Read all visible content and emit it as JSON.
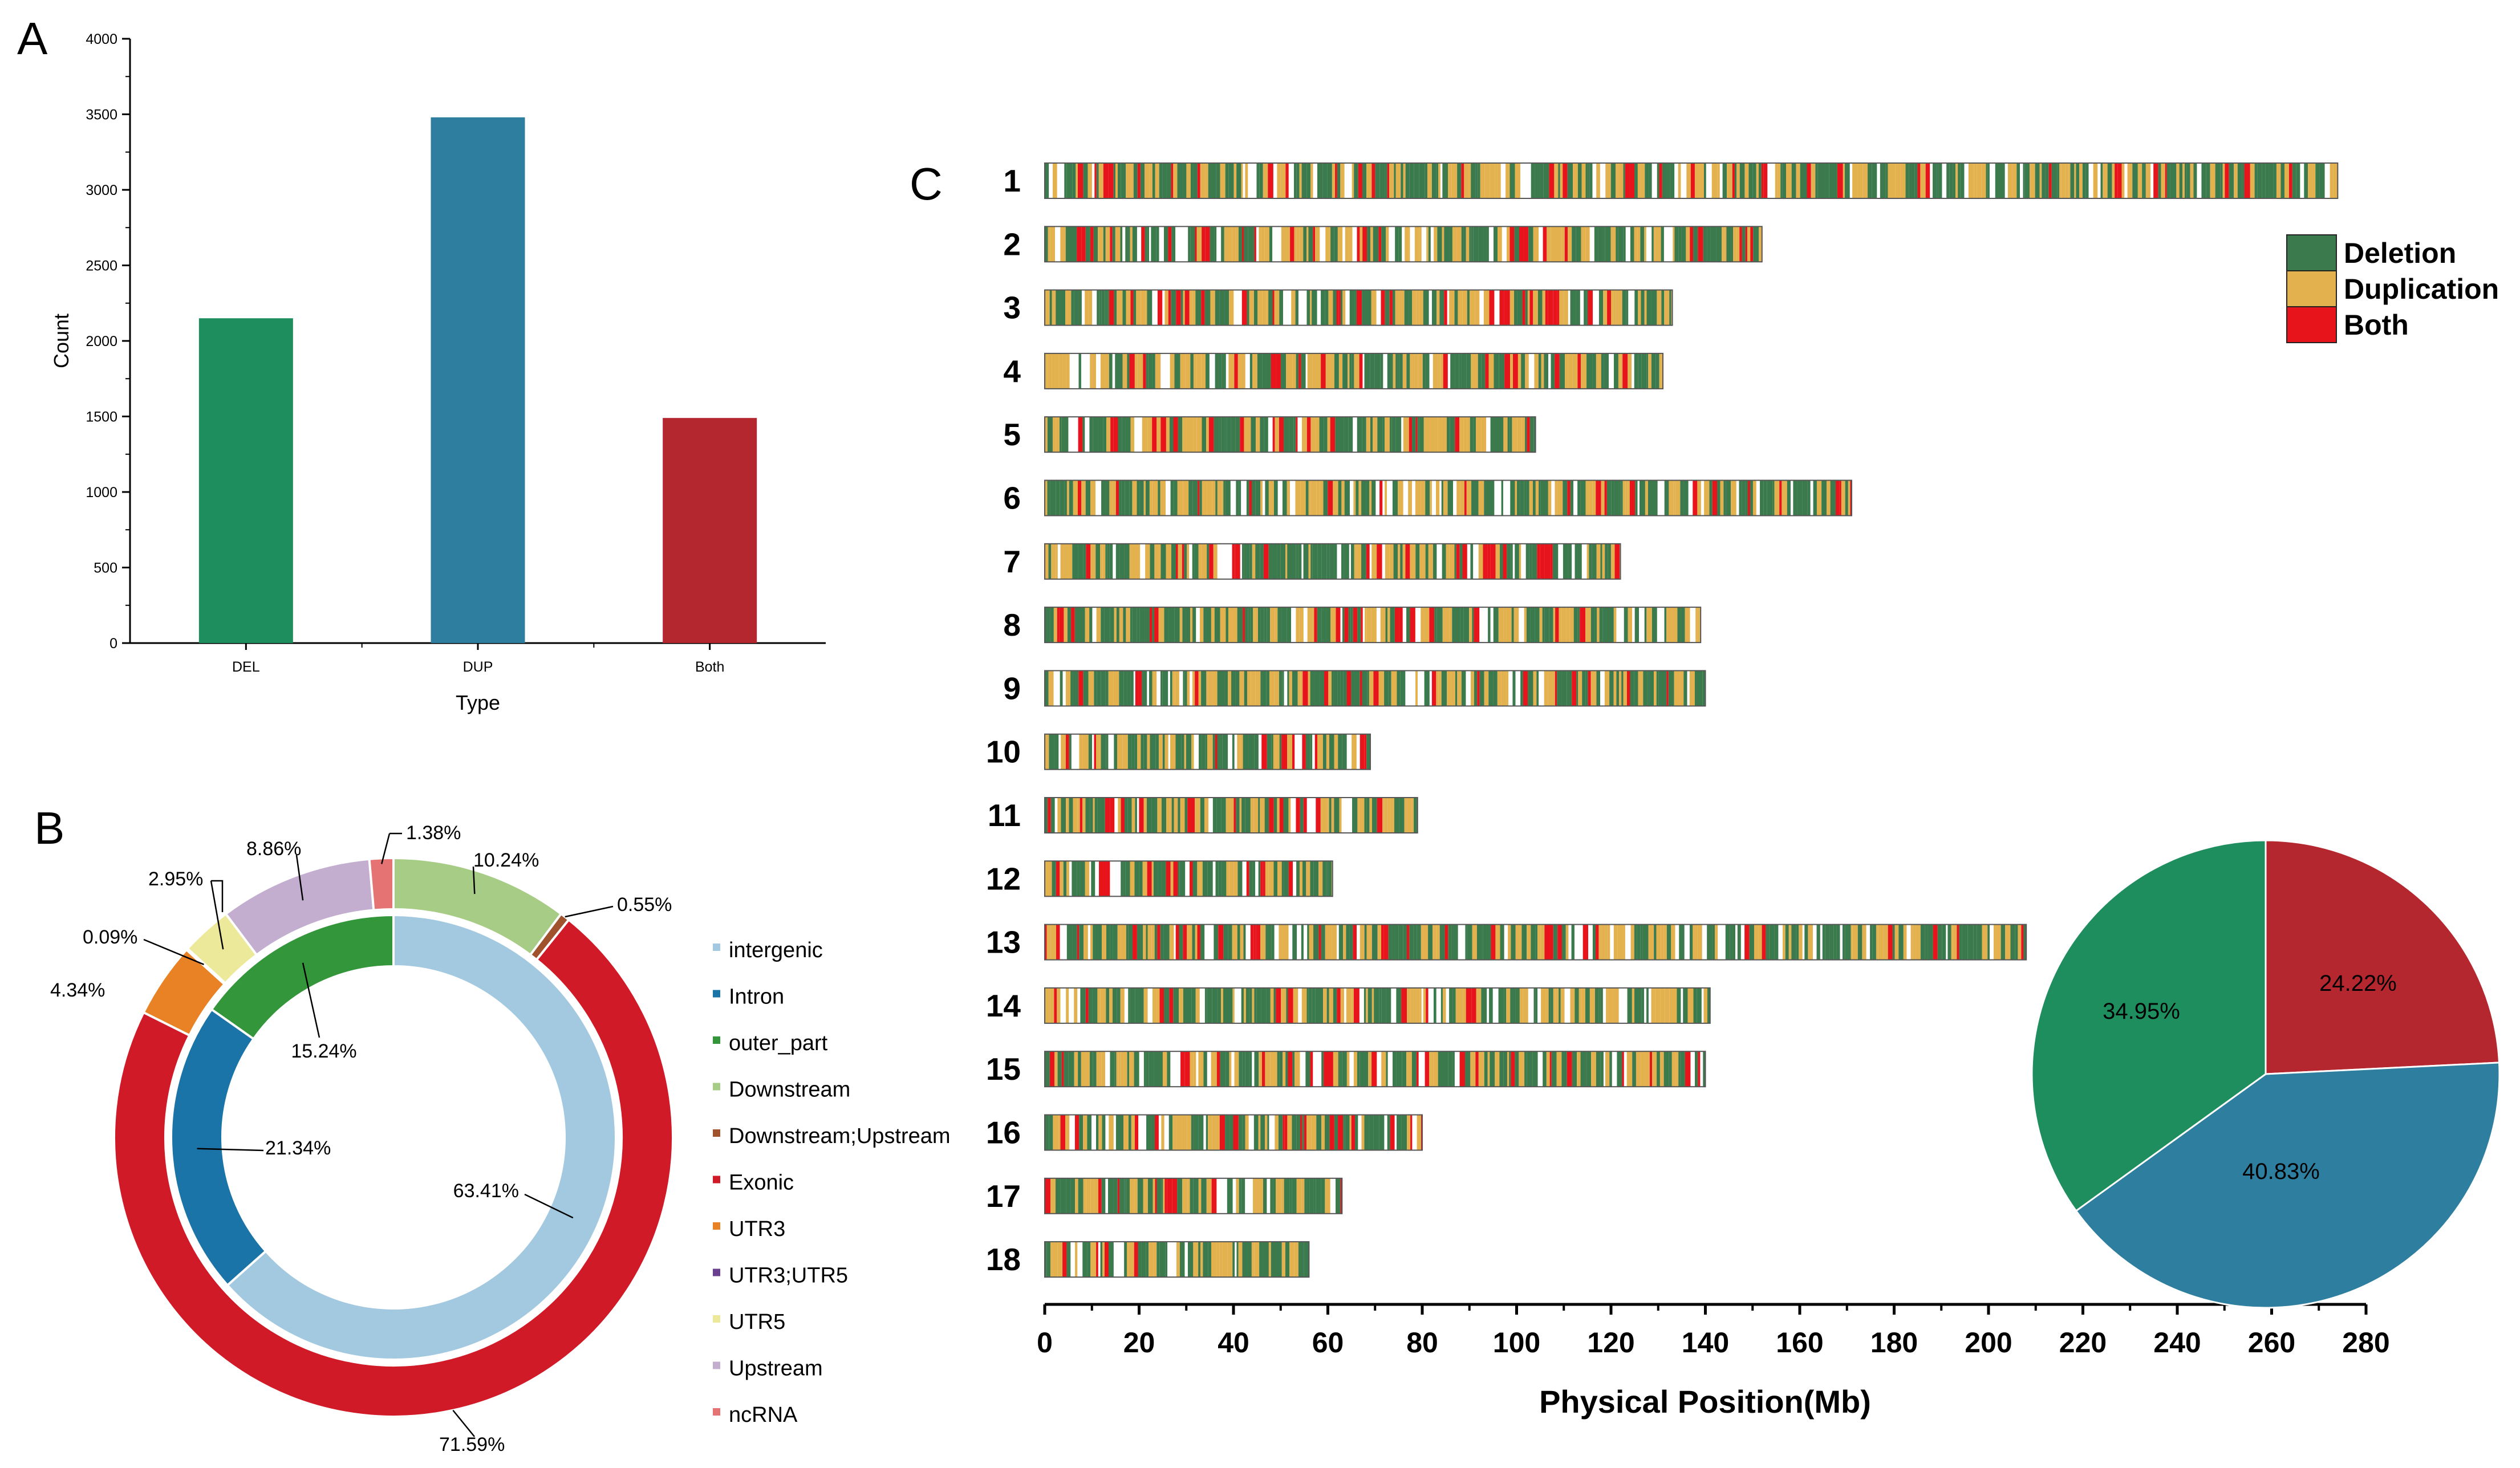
{
  "panel_labels": {
    "a": "A",
    "b": "B",
    "c": "C"
  },
  "chart_data": [
    {
      "id": "A",
      "type": "bar",
      "xlabel": "Type",
      "ylabel": "Count",
      "ylim": [
        0,
        4000
      ],
      "yticks": [
        0,
        500,
        1000,
        1500,
        2000,
        2500,
        3000,
        3500,
        4000
      ],
      "categories": [
        "DEL",
        "DUP",
        "Both"
      ],
      "values": [
        2150,
        3480,
        1490
      ],
      "colors": [
        "#1e8e5f",
        "#2e7f9f",
        "#b5272f"
      ]
    },
    {
      "id": "B",
      "type": "pie",
      "style": "double-donut",
      "legend": [
        {
          "label": "intergenic",
          "color": "#a3c9e0"
        },
        {
          "label": "Intron",
          "color": "#1b74a8"
        },
        {
          "label": "outer_part",
          "color": "#33963a"
        },
        {
          "label": "Downstream",
          "color": "#a6cc85"
        },
        {
          "label": "Downstream;Upstream",
          "color": "#a0522d"
        },
        {
          "label": "Exonic",
          "color": "#d11a28"
        },
        {
          "label": "UTR3",
          "color": "#e98125"
        },
        {
          "label": "UTR3;UTR5",
          "color": "#6b3f8f"
        },
        {
          "label": "UTR5",
          "color": "#ede99a"
        },
        {
          "label": "Upstream",
          "color": "#c3aed0"
        },
        {
          "label": "ncRNA",
          "color": "#e57373"
        }
      ],
      "inner_ring": [
        {
          "label": "intergenic",
          "value": 63.41,
          "text": "63.41%"
        },
        {
          "label": "Intron",
          "value": 21.34,
          "text": "21.34%"
        },
        {
          "label": "outer_part",
          "value": 15.24,
          "text": "15.24%"
        }
      ],
      "outer_ring": [
        {
          "label": "Downstream",
          "value": 10.24,
          "text": "10.24%"
        },
        {
          "label": "Downstream;Upstream",
          "value": 0.55,
          "text": "0.55%"
        },
        {
          "label": "Exonic",
          "value": 71.59,
          "text": "71.59%"
        },
        {
          "label": "UTR3",
          "value": 4.34,
          "text": "4.34%"
        },
        {
          "label": "UTR3;UTR5",
          "value": 0.09,
          "text": "0.09%"
        },
        {
          "label": "UTR5",
          "value": 2.95,
          "text": "2.95%"
        },
        {
          "label": "Upstream",
          "value": 8.86,
          "text": "8.86%"
        },
        {
          "label": "ncRNA",
          "value": 1.38,
          "text": "1.38%"
        }
      ]
    },
    {
      "id": "C",
      "type": "heatmap",
      "xlabel": "Physical Position(Mb)",
      "xlim": [
        0,
        280
      ],
      "xticks": [
        0,
        20,
        40,
        60,
        80,
        100,
        120,
        140,
        160,
        180,
        200,
        220,
        240,
        260,
        280
      ],
      "legend": [
        {
          "label": "Deletion",
          "color": "#3b7a4c"
        },
        {
          "label": "Duplication",
          "color": "#e3b24f"
        },
        {
          "label": "Both",
          "color": "#e8141c"
        }
      ],
      "chromosomes": [
        {
          "name": "1",
          "length_mb": 274
        },
        {
          "name": "2",
          "length_mb": 152
        },
        {
          "name": "3",
          "length_mb": 133
        },
        {
          "name": "4",
          "length_mb": 131
        },
        {
          "name": "5",
          "length_mb": 104
        },
        {
          "name": "6",
          "length_mb": 171
        },
        {
          "name": "7",
          "length_mb": 122
        },
        {
          "name": "8",
          "length_mb": 139
        },
        {
          "name": "9",
          "length_mb": 140
        },
        {
          "name": "10",
          "length_mb": 69
        },
        {
          "name": "11",
          "length_mb": 79
        },
        {
          "name": "12",
          "length_mb": 61
        },
        {
          "name": "13",
          "length_mb": 208
        },
        {
          "name": "14",
          "length_mb": 141
        },
        {
          "name": "15",
          "length_mb": 140
        },
        {
          "name": "16",
          "length_mb": 80
        },
        {
          "name": "17",
          "length_mb": 63
        },
        {
          "name": "18",
          "length_mb": 56
        }
      ]
    },
    {
      "id": "C-pie",
      "type": "pie",
      "slices": [
        {
          "label": "Both",
          "value": 24.22,
          "text": "24.22%",
          "color": "#b5272f"
        },
        {
          "label": "DUP",
          "value": 40.83,
          "text": "40.83%",
          "color": "#2e7f9f"
        },
        {
          "label": "DEL",
          "value": 34.95,
          "text": "34.95%",
          "color": "#1e8e5f"
        }
      ]
    }
  ]
}
